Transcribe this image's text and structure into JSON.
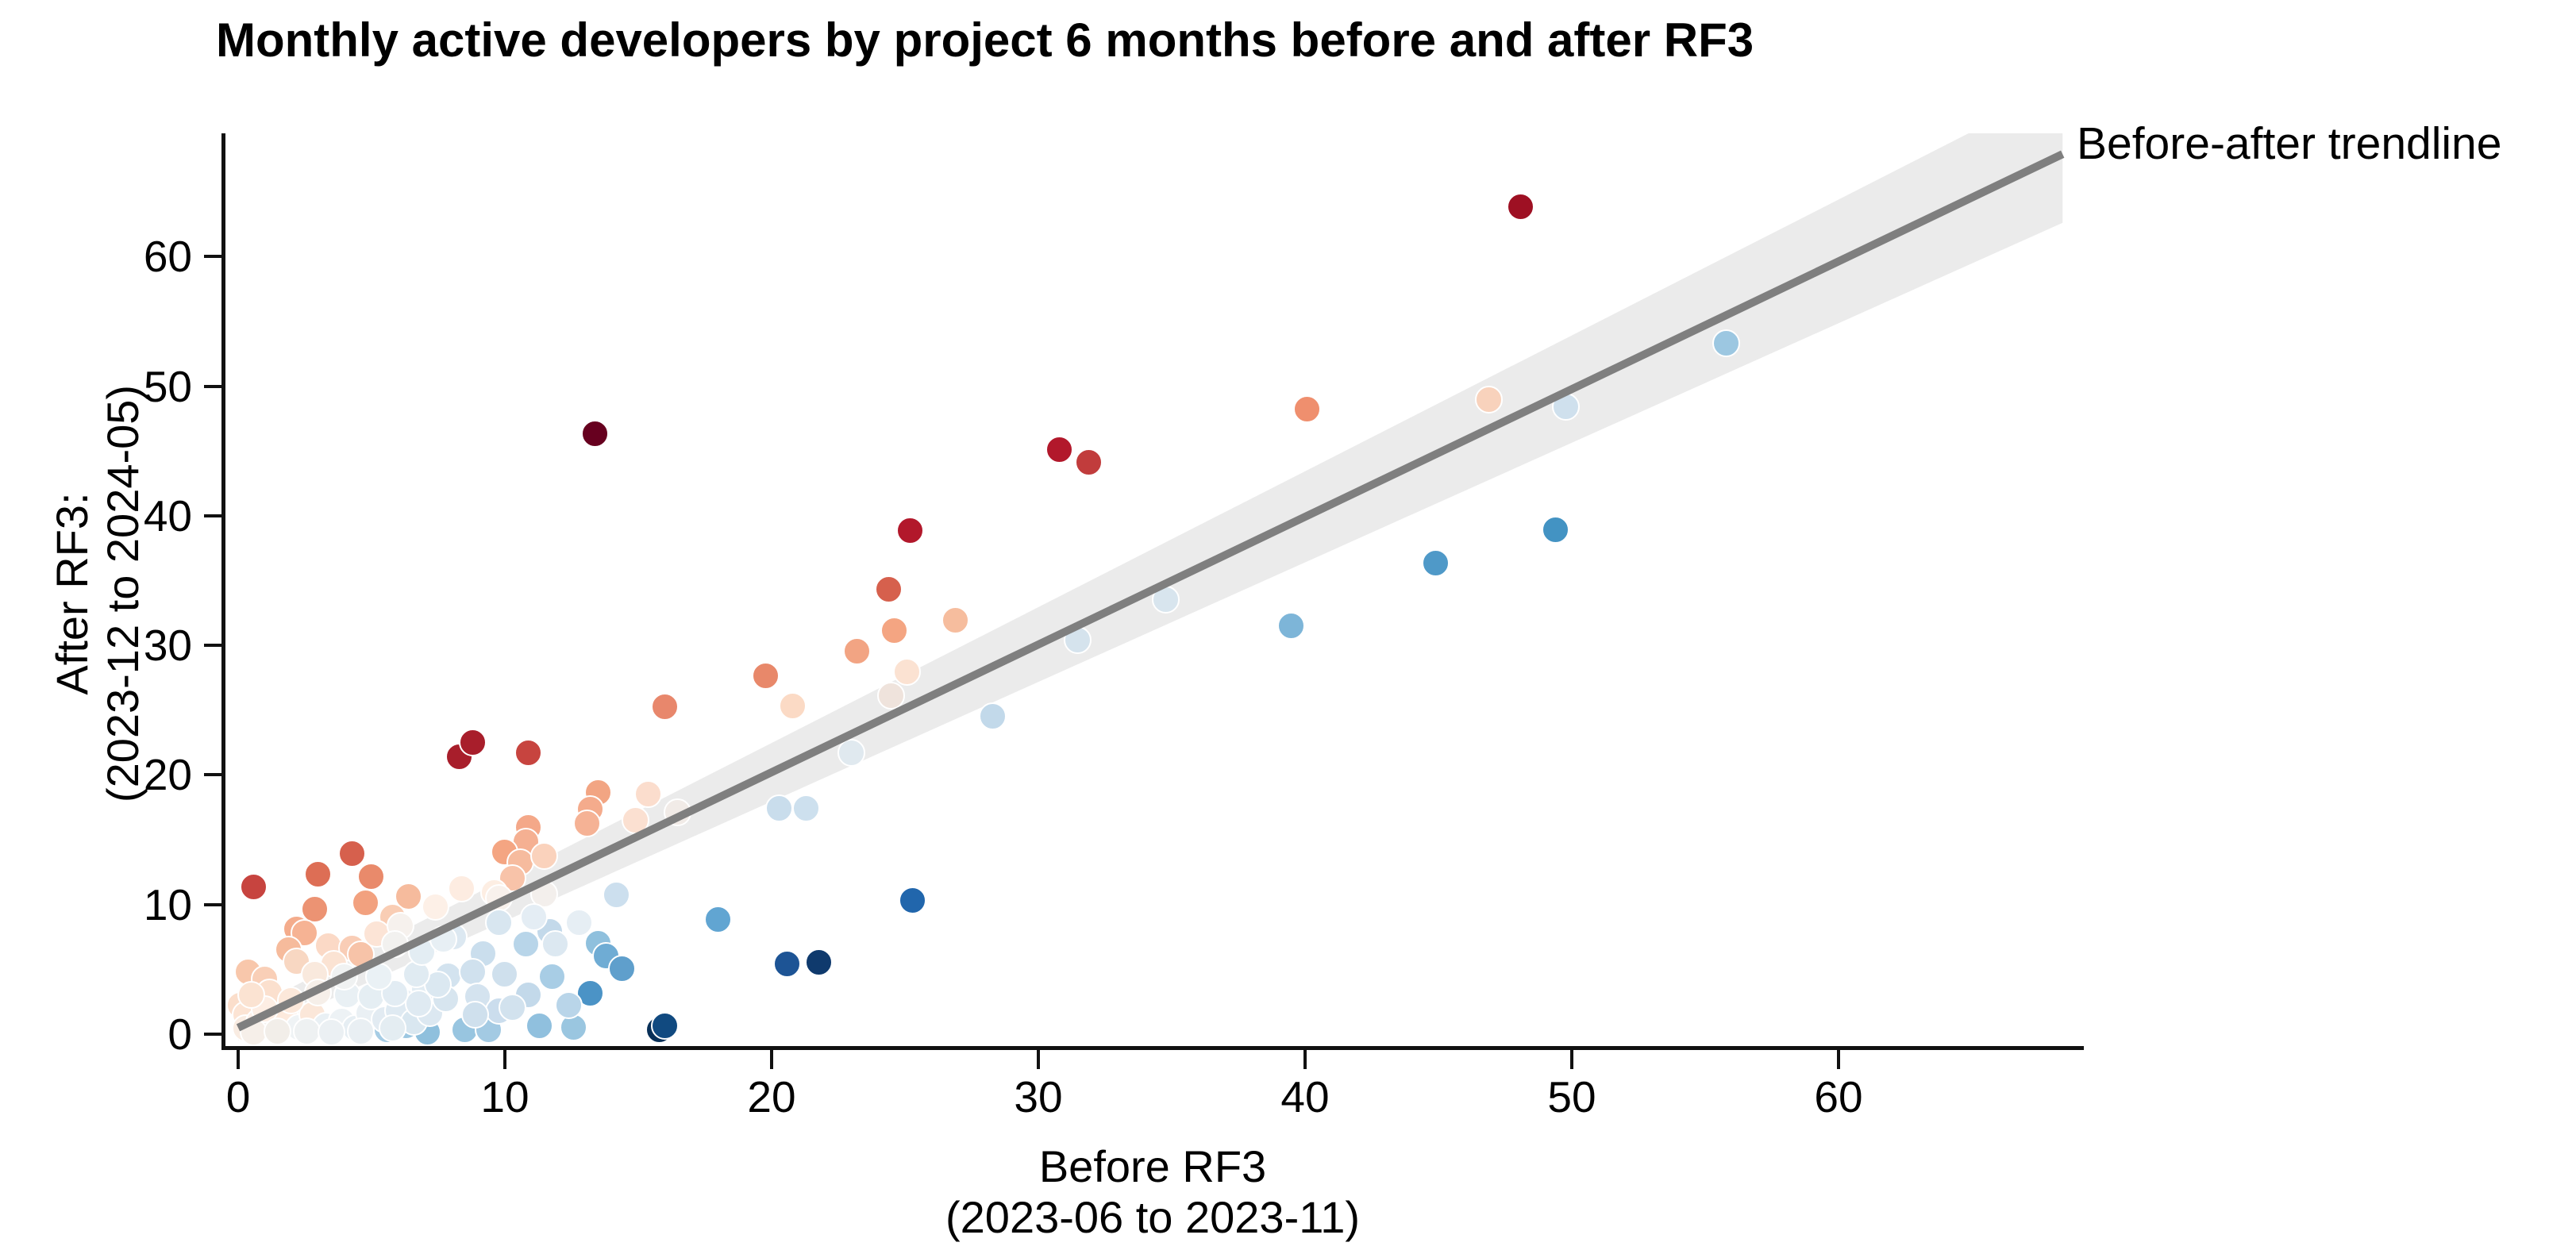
{
  "title": "Monthly active developers by project 6 months before and after RF3",
  "legend": {
    "trendline_label": "Before-after trendline"
  },
  "x_axis": {
    "label_line1": "Before RF3",
    "label_line2": "(2023-06 to 2023-11)",
    "ticks": [
      0,
      10,
      20,
      30,
      40,
      50,
      60
    ]
  },
  "y_axis": {
    "label_line1": "After RF3:",
    "label_line2": "(2023-12 to 2024-05)",
    "ticks": [
      0,
      10,
      20,
      30,
      40,
      50,
      60
    ]
  },
  "colors": {
    "axis": "#111111",
    "trendline": "#7f7f7f",
    "confidence_band": "#ebebeb",
    "palette_low": "#053061",
    "palette_mid": "#f7f7f7",
    "palette_high": "#67001f"
  },
  "chart_data": {
    "type": "scatter",
    "title": "Monthly active developers by project 6 months before and after RF3",
    "xlabel": "Before RF3 (2023-06 to 2023-11)",
    "ylabel": "After RF3: (2023-12 to 2024-05)",
    "xlim": [
      -0.57,
      69.2
    ],
    "ylim": [
      -1.0,
      69.5
    ],
    "grid": false,
    "legend_position": "top-right-outside",
    "trendline": {
      "x1": 0,
      "y1": 0.5,
      "x2": 68.4,
      "y2": 67.9
    },
    "confidence_band": [
      [
        0,
        -0.5
      ],
      [
        68.4,
        62.6
      ],
      [
        68.4,
        73.2
      ],
      [
        0,
        1.5
      ]
    ],
    "points": [
      [
        48.1,
        63.8,
        "#9e1023"
      ],
      [
        13.4,
        46.3,
        "#67001f"
      ],
      [
        30.8,
        45.1,
        "#b2182b"
      ],
      [
        31.9,
        44.1,
        "#c13c3c"
      ],
      [
        25.2,
        38.8,
        "#b2182b"
      ],
      [
        40.1,
        48.2,
        "#ef8f6e"
      ],
      [
        46.9,
        48.9,
        "#f8d2bc"
      ],
      [
        49.8,
        48.4,
        "#cfe0ed"
      ],
      [
        55.8,
        53.3,
        "#9cc7e1"
      ],
      [
        49.4,
        38.9,
        "#4393c3"
      ],
      [
        44.9,
        36.3,
        "#4f99c8"
      ],
      [
        39.5,
        31.5,
        "#7db5d8"
      ],
      [
        34.8,
        33.5,
        "#d8e5ee"
      ],
      [
        31.5,
        30.4,
        "#d5e3ed"
      ],
      [
        28.3,
        24.5,
        "#c2d9ea"
      ],
      [
        24.4,
        34.3,
        "#d6604d"
      ],
      [
        24.6,
        31.1,
        "#f4a582"
      ],
      [
        26.9,
        31.9,
        "#f6bd9e"
      ],
      [
        23.2,
        29.5,
        "#f2a483"
      ],
      [
        25.1,
        27.9,
        "#fbe2d2"
      ],
      [
        24.5,
        26.1,
        "#efe3dc"
      ],
      [
        20.8,
        25.3,
        "#fbdac5"
      ],
      [
        19.8,
        27.6,
        "#e8886a"
      ],
      [
        23.0,
        21.7,
        "#e0e9ef"
      ],
      [
        20.3,
        17.4,
        "#c9ddec"
      ],
      [
        21.3,
        17.4,
        "#cde0ee"
      ],
      [
        25.3,
        10.3,
        "#2166ac"
      ],
      [
        18.0,
        8.8,
        "#61a5d2"
      ],
      [
        20.6,
        5.4,
        "#1d5495"
      ],
      [
        21.8,
        5.5,
        "#0f3a6d"
      ],
      [
        15.8,
        0.3,
        "#083058"
      ],
      [
        16.0,
        0.6,
        "#114a80"
      ],
      [
        8.3,
        21.4,
        "#a81e2b"
      ],
      [
        8.8,
        22.5,
        "#a81e2b"
      ],
      [
        10.9,
        21.7,
        "#c7443f"
      ],
      [
        16.0,
        25.2,
        "#e8876c"
      ],
      [
        13.5,
        18.6,
        "#f2a583"
      ],
      [
        13.2,
        17.3,
        "#f4ab8c"
      ],
      [
        13.1,
        16.2,
        "#f5b295"
      ],
      [
        15.4,
        18.5,
        "#fbddcd"
      ],
      [
        14.9,
        16.5,
        "#fbe0d1"
      ],
      [
        16.5,
        17.1,
        "#f1ebe7"
      ],
      [
        10.9,
        15.9,
        "#f4a889"
      ],
      [
        10.8,
        14.8,
        "#f5b092"
      ],
      [
        10.0,
        14.0,
        "#f4a582"
      ],
      [
        10.6,
        13.2,
        "#f6bb9e"
      ],
      [
        10.3,
        12.0,
        "#f8c3a9"
      ],
      [
        11.5,
        13.7,
        "#fad2bc"
      ],
      [
        11.5,
        10.8,
        "#f3efec"
      ],
      [
        4.3,
        13.9,
        "#d6604d"
      ],
      [
        3.0,
        12.3,
        "#dd6e55"
      ],
      [
        0.6,
        11.3,
        "#c7443f"
      ],
      [
        5.0,
        12.1,
        "#e98a6b"
      ],
      [
        2.9,
        9.6,
        "#ec9373"
      ],
      [
        4.8,
        10.1,
        "#f2a17f"
      ],
      [
        6.4,
        10.6,
        "#f6bb9d"
      ],
      [
        5.8,
        9.0,
        "#f9cdb4"
      ],
      [
        2.2,
        8.1,
        "#f4ac8c"
      ],
      [
        2.5,
        7.8,
        "#f6b394"
      ],
      [
        1.9,
        6.5,
        "#f6bb9c"
      ],
      [
        3.4,
        6.8,
        "#fbd9c6"
      ],
      [
        4.3,
        6.6,
        "#f9cdb6"
      ],
      [
        4.6,
        6.1,
        "#f7c3a8"
      ],
      [
        5.2,
        7.7,
        "#fce4d6"
      ],
      [
        0.4,
        4.8,
        "#f8c7ab"
      ],
      [
        1.0,
        4.2,
        "#f9cfb7"
      ],
      [
        0.1,
        2.2,
        "#fbdecb"
      ],
      [
        0.3,
        1.5,
        "#fce4d4"
      ],
      [
        9.6,
        10.9,
        "#fdeee3"
      ],
      [
        9.8,
        10.5,
        "#f8f1ec"
      ],
      [
        1.2,
        3.2,
        "#fbe0ce"
      ],
      [
        2.2,
        5.6,
        "#f8d7c2"
      ],
      [
        3.6,
        5.4,
        "#fbe3d3"
      ],
      [
        2.9,
        4.6,
        "#f9e9dd"
      ],
      [
        14.2,
        10.7,
        "#ccdfee"
      ],
      [
        11.7,
        7.9,
        "#c3d9ea"
      ],
      [
        10.8,
        6.9,
        "#b8d5e9"
      ],
      [
        9.2,
        6.2,
        "#cadeed"
      ],
      [
        9.8,
        8.6,
        "#d8e6f0"
      ],
      [
        8.1,
        7.5,
        "#dce8f1"
      ],
      [
        7.9,
        4.5,
        "#d3e3ef"
      ],
      [
        8.8,
        4.8,
        "#d0e1ee"
      ],
      [
        7.0,
        3.4,
        "#e2ecf3"
      ],
      [
        6.2,
        2.5,
        "#e8eff5"
      ],
      [
        11.1,
        9.0,
        "#e4edf4"
      ],
      [
        11.8,
        4.4,
        "#a8cde5"
      ],
      [
        13.5,
        7.0,
        "#8fc0dd"
      ],
      [
        13.8,
        6.0,
        "#6facd4"
      ],
      [
        14.4,
        5.0,
        "#5f9fcc"
      ],
      [
        13.2,
        3.1,
        "#4b93c6"
      ],
      [
        5.6,
        0.3,
        "#a6cce4"
      ],
      [
        6.3,
        0.6,
        "#9cc7e1"
      ],
      [
        7.1,
        0.1,
        "#8fc0dd"
      ],
      [
        8.5,
        0.3,
        "#98c5e0"
      ],
      [
        9.4,
        0.3,
        "#a3cae3"
      ],
      [
        11.3,
        0.6,
        "#90c0de"
      ],
      [
        12.6,
        0.5,
        "#9ac6e0"
      ],
      [
        12.4,
        2.2,
        "#b9d5e9"
      ],
      [
        10.0,
        4.6,
        "#cfe0ed"
      ],
      [
        10.9,
        3.0,
        "#c3d9ea"
      ],
      [
        9.0,
        2.9,
        "#d4e3ef"
      ],
      [
        9.8,
        1.8,
        "#cbdded"
      ],
      [
        11.9,
        6.9,
        "#dce8f1"
      ],
      [
        12.8,
        8.6,
        "#e6eef4"
      ],
      [
        0.3,
        0.4,
        "#f9ece2"
      ],
      [
        0.8,
        0.9,
        "#fdf1e9"
      ],
      [
        1.3,
        0.4,
        "#f4ede9"
      ],
      [
        1.8,
        1.2,
        "#fdeadd"
      ],
      [
        2.3,
        0.5,
        "#eff3f5"
      ],
      [
        2.8,
        1.5,
        "#fbe7d9"
      ],
      [
        3.3,
        0.6,
        "#e9f0f4"
      ],
      [
        3.9,
        1.0,
        "#edf2f5"
      ],
      [
        4.4,
        0.4,
        "#e6eef3"
      ],
      [
        4.9,
        1.6,
        "#eaf0f4"
      ],
      [
        5.5,
        1.1,
        "#e2ebf2"
      ],
      [
        2.0,
        2.6,
        "#fce8da"
      ],
      [
        3.0,
        3.2,
        "#f6efe9"
      ],
      [
        4.1,
        3.0,
        "#e9f0f4"
      ],
      [
        5.0,
        2.9,
        "#e5eef3"
      ],
      [
        6.0,
        1.8,
        "#dfeaf2"
      ],
      [
        6.6,
        0.9,
        "#d9e7f0"
      ],
      [
        7.2,
        1.6,
        "#dce8f1"
      ],
      [
        1.0,
        1.9,
        "#fdeee4"
      ],
      [
        0.5,
        3.0,
        "#fbe3d2"
      ],
      [
        7.8,
        2.7,
        "#d7e5ef"
      ],
      [
        8.9,
        1.5,
        "#cfe0ed"
      ],
      [
        10.3,
        2.0,
        "#d2e2ee"
      ],
      [
        0.6,
        0.15,
        "#f6efe9"
      ],
      [
        1.5,
        0.2,
        "#f2eee9"
      ],
      [
        2.6,
        0.2,
        "#eef1f2"
      ],
      [
        3.5,
        0.15,
        "#ebf0f3"
      ],
      [
        4.6,
        0.2,
        "#e9eff3"
      ],
      [
        5.8,
        0.4,
        "#e4edf2"
      ],
      [
        6.8,
        2.3,
        "#dfeaf2"
      ],
      [
        5.9,
        3.1,
        "#e2ecf3"
      ],
      [
        7.5,
        3.8,
        "#dbe8f1"
      ],
      [
        6.7,
        4.6,
        "#e0ebf2"
      ],
      [
        5.3,
        4.4,
        "#eaf1f5"
      ],
      [
        4.0,
        4.4,
        "#f0f2f2"
      ],
      [
        6.9,
        6.3,
        "#e3edf3"
      ],
      [
        7.7,
        7.3,
        "#e7eff4"
      ],
      [
        6.1,
        8.3,
        "#f6f1ed"
      ],
      [
        5.9,
        6.9,
        "#f2f1ef"
      ],
      [
        7.4,
        9.8,
        "#fdf0e7"
      ],
      [
        8.4,
        11.2,
        "#fdece1"
      ]
    ]
  }
}
